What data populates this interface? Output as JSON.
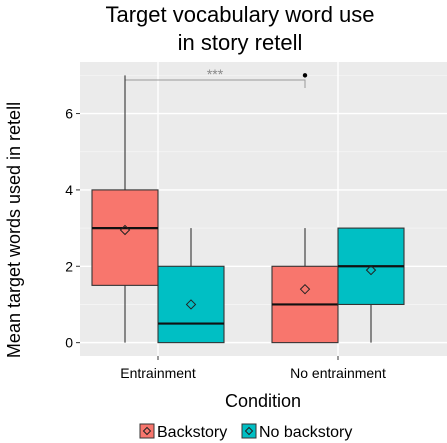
{
  "chart_data": {
    "type": "boxplot",
    "title": [
      "Target vocabulary word use",
      "in story retell"
    ],
    "xlabel": "Condition",
    "ylabel": "Mean target words used in retell",
    "categories": [
      "Entrainment",
      "No entrainment"
    ],
    "ylim": [
      -0.35,
      7.35
    ],
    "yticks": [
      0,
      2,
      4,
      6
    ],
    "yticks_labels": [
      "0",
      "2",
      "4",
      "6"
    ],
    "grid": true,
    "legend_position": "bottom",
    "series": [
      {
        "name": "Backstory",
        "color": "#F8766D",
        "boxes": [
          {
            "category": "Entrainment",
            "whisker_low": 0,
            "q1": 1.5,
            "median": 3,
            "q3": 4,
            "whisker_high": 7,
            "mean": 2.95,
            "outliers": []
          },
          {
            "category": "No entrainment",
            "whisker_low": 0,
            "q1": 0,
            "median": 1,
            "q3": 2,
            "whisker_high": 3,
            "mean": 1.4,
            "outliers": [
              7
            ]
          }
        ]
      },
      {
        "name": "No backstory",
        "color": "#00BFC4",
        "boxes": [
          {
            "category": "Entrainment",
            "whisker_low": 0,
            "q1": 0,
            "median": 0.5,
            "q3": 2,
            "whisker_high": 3,
            "mean": 1.0,
            "outliers": []
          },
          {
            "category": "No entrainment",
            "whisker_low": 0,
            "q1": 1,
            "median": 2,
            "q3": 3,
            "whisker_high": 3,
            "mean": 1.9,
            "outliers": []
          }
        ]
      }
    ],
    "annotations": [
      {
        "text": "***",
        "from_category": "Entrainment",
        "to_category": "No entrainment",
        "y": 7.6
      }
    ]
  }
}
